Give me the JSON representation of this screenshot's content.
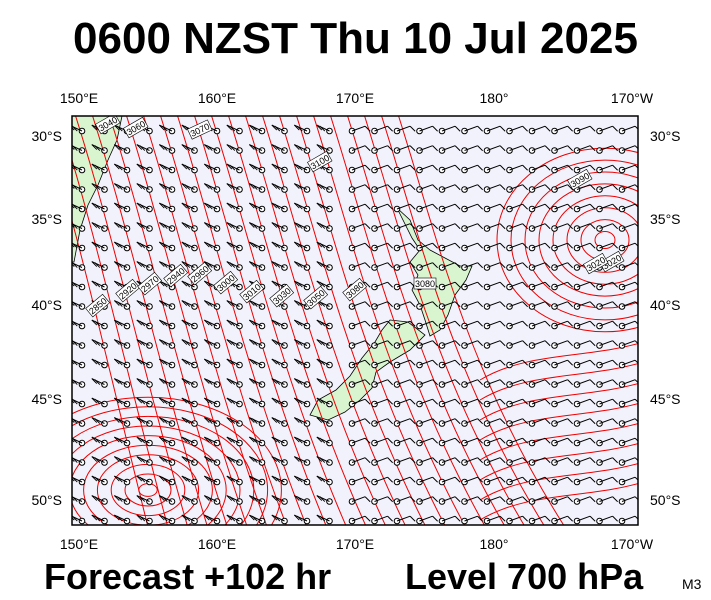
{
  "header": {
    "title": "0600 NZST Thu 10 Jul 2025"
  },
  "footer": {
    "forecast": "Forecast +102 hr",
    "level": "Level 700 hPa",
    "model_code": "M3"
  },
  "map": {
    "lon_labels": [
      "150°E",
      "160°E",
      "170°E",
      "180°",
      "170°W"
    ],
    "lat_labels": [
      "30°S",
      "35°S",
      "40°S",
      "45°S",
      "50°S"
    ],
    "colors": {
      "ocean": "#f2f2fc",
      "land": "#d8f5d0",
      "contour": "#ee0000",
      "frame": "#000000",
      "wind_barb": "#000000"
    },
    "contour_labels": [
      "3040",
      "3060",
      "3070",
      "3100",
      "3080",
      "3020",
      "2850",
      "2920",
      "2970",
      "2940",
      "2960",
      "3000",
      "3010",
      "3030",
      "3050",
      "3080",
      "3090",
      "3020"
    ]
  }
}
